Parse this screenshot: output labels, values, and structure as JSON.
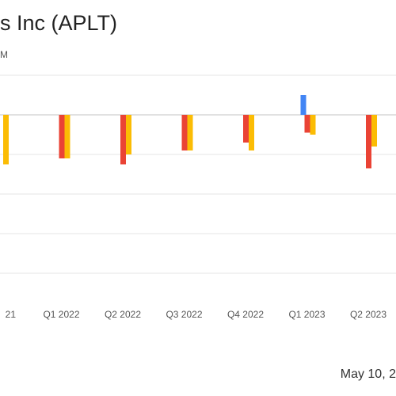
{
  "chart_data": {
    "type": "bar",
    "title": "s Inc (APLT)",
    "subtitle": "M",
    "categories": [
      "21",
      "Q1 2022",
      "Q2 2022",
      "Q3 2022",
      "Q4 2022",
      "Q1 2023",
      "Q2 2023"
    ],
    "series": [
      {
        "color": "#4285f4",
        "values": [
          null,
          null,
          null,
          null,
          null,
          0.5,
          null
        ]
      },
      {
        "color": "#ea4335",
        "values": [
          null,
          -1.1,
          -1.25,
          -0.9,
          -0.7,
          -0.45,
          -1.35
        ]
      },
      {
        "color": "#fbbc04",
        "values": [
          -1.25,
          -1.1,
          -1.0,
          -0.9,
          -0.9,
          -0.5,
          -0.8
        ]
      }
    ],
    "ylim": [
      -4.0,
      1.0
    ],
    "grid": true,
    "legend": "none",
    "date_text": "May 10, 2"
  }
}
